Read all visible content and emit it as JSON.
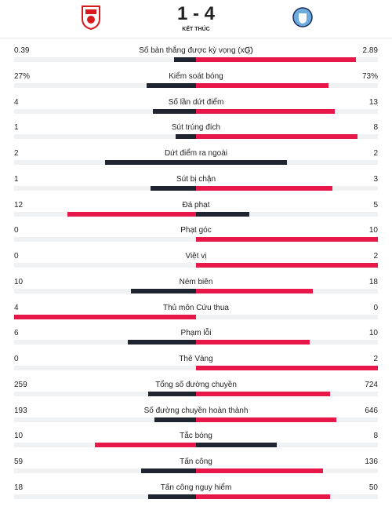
{
  "header": {
    "score": "1 - 4",
    "status": "KẾT THÚC"
  },
  "stats": [
    {
      "label": "Số bàn thắng được kỳ vọng (xG)",
      "home": "0.39",
      "away": "2.89"
    },
    {
      "label": "Kiểm soát bóng",
      "home": "27%",
      "away": "73%"
    },
    {
      "label": "Số lần dứt điểm",
      "home": "4",
      "away": "13"
    },
    {
      "label": "Sút trúng đích",
      "home": "1",
      "away": "8"
    },
    {
      "label": "Dứt điểm ra ngoài",
      "home": "2",
      "away": "2"
    },
    {
      "label": "Sút bị chặn",
      "home": "1",
      "away": "3"
    },
    {
      "label": "Đá phạt",
      "home": "12",
      "away": "5"
    },
    {
      "label": "Phạt góc",
      "home": "0",
      "away": "10"
    },
    {
      "label": "Việt vị",
      "home": "0",
      "away": "2"
    },
    {
      "label": "Ném biên",
      "home": "10",
      "away": "18"
    },
    {
      "label": "Thủ môn Cứu thua",
      "home": "4",
      "away": "0"
    },
    {
      "label": "Phạm lỗi",
      "home": "6",
      "away": "10"
    },
    {
      "label": "Thẻ Vàng",
      "home": "0",
      "away": "2"
    },
    {
      "label": "Tổng số đường chuyền",
      "home": "259",
      "away": "724"
    },
    {
      "label": "Số đường chuyền hoàn thành",
      "home": "193",
      "away": "646"
    },
    {
      "label": "Tắc bóng",
      "home": "10",
      "away": "8"
    },
    {
      "label": "Tấn công",
      "home": "59",
      "away": "136"
    },
    {
      "label": "Tấn công nguy hiểm",
      "home": "18",
      "away": "50"
    }
  ]
}
